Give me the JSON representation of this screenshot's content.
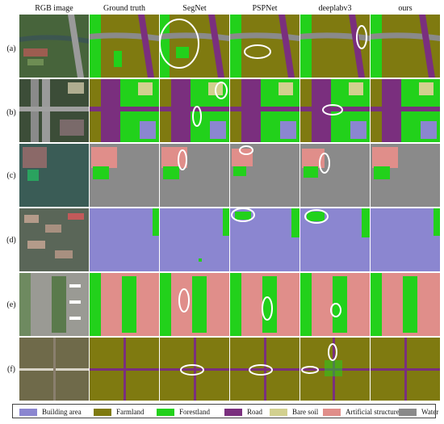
{
  "columns": [
    "RGB image",
    "Ground truth",
    "SegNet",
    "PSPNet",
    "deeplabv3",
    "ours"
  ],
  "rows": [
    "(a)",
    "(b)",
    "(c)",
    "(d)",
    "(e)",
    "(f)"
  ],
  "legend": [
    {
      "label": "Building area",
      "color": "#8b86d0"
    },
    {
      "label": "Farmland",
      "color": "#7f7a10"
    },
    {
      "label": "Forestland",
      "color": "#22d11b"
    },
    {
      "label": "Road",
      "color": "#7a2f7e"
    },
    {
      "label": "Bare soil",
      "color": "#d2d08f"
    },
    {
      "label": "Artificial structures",
      "color": "#e08e8a"
    },
    {
      "label": "Water",
      "color": "#8a8a8a"
    }
  ],
  "highlight_color": "#ffffff"
}
